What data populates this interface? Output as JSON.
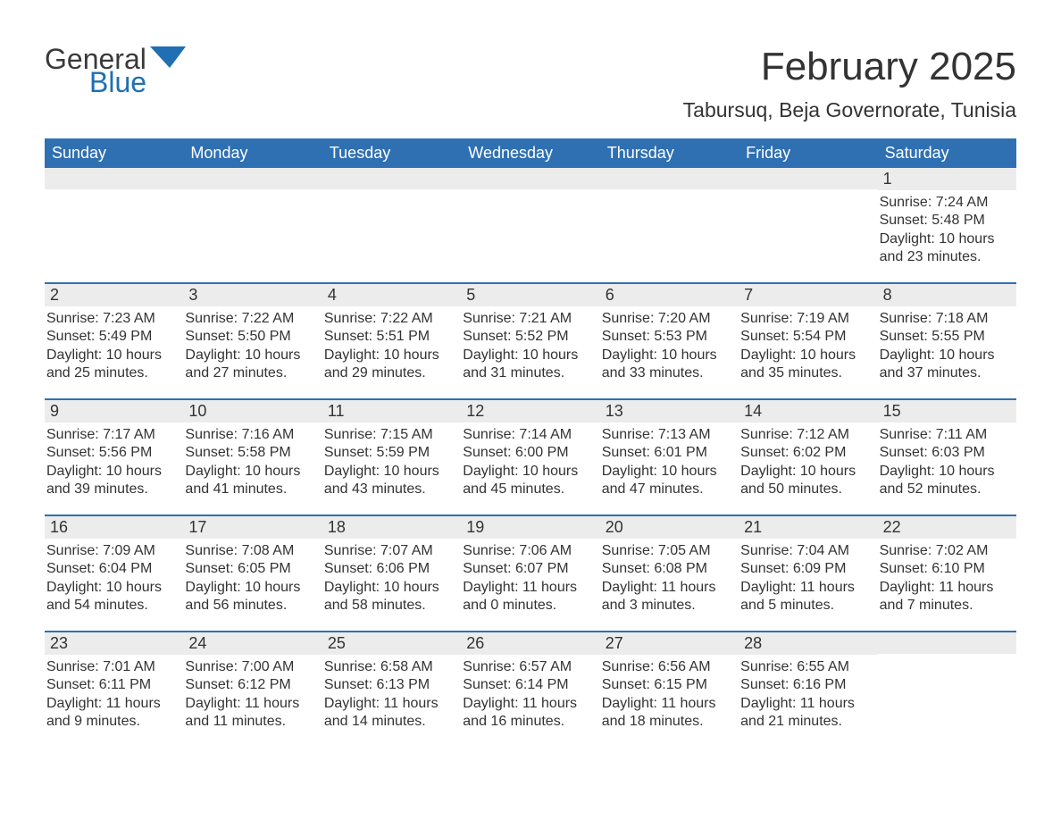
{
  "logo": {
    "general": "General",
    "blue": "Blue",
    "mark_color": "#1f6fb2"
  },
  "title": "February 2025",
  "location": "Tabursuq, Beja Governorate, Tunisia",
  "header_bg": "#2f70b3",
  "header_fg": "#ffffff",
  "daynum_bg": "#ececec",
  "week_border": "#2f70b3",
  "text_color": "#333333",
  "background_color": "#ffffff",
  "day_headers": [
    "Sunday",
    "Monday",
    "Tuesday",
    "Wednesday",
    "Thursday",
    "Friday",
    "Saturday"
  ],
  "weeks": [
    [
      null,
      null,
      null,
      null,
      null,
      null,
      {
        "n": "1",
        "sunrise": "Sunrise: 7:24 AM",
        "sunset": "Sunset: 5:48 PM",
        "day1": "Daylight: 10 hours",
        "day2": "and 23 minutes."
      }
    ],
    [
      {
        "n": "2",
        "sunrise": "Sunrise: 7:23 AM",
        "sunset": "Sunset: 5:49 PM",
        "day1": "Daylight: 10 hours",
        "day2": "and 25 minutes."
      },
      {
        "n": "3",
        "sunrise": "Sunrise: 7:22 AM",
        "sunset": "Sunset: 5:50 PM",
        "day1": "Daylight: 10 hours",
        "day2": "and 27 minutes."
      },
      {
        "n": "4",
        "sunrise": "Sunrise: 7:22 AM",
        "sunset": "Sunset: 5:51 PM",
        "day1": "Daylight: 10 hours",
        "day2": "and 29 minutes."
      },
      {
        "n": "5",
        "sunrise": "Sunrise: 7:21 AM",
        "sunset": "Sunset: 5:52 PM",
        "day1": "Daylight: 10 hours",
        "day2": "and 31 minutes."
      },
      {
        "n": "6",
        "sunrise": "Sunrise: 7:20 AM",
        "sunset": "Sunset: 5:53 PM",
        "day1": "Daylight: 10 hours",
        "day2": "and 33 minutes."
      },
      {
        "n": "7",
        "sunrise": "Sunrise: 7:19 AM",
        "sunset": "Sunset: 5:54 PM",
        "day1": "Daylight: 10 hours",
        "day2": "and 35 minutes."
      },
      {
        "n": "8",
        "sunrise": "Sunrise: 7:18 AM",
        "sunset": "Sunset: 5:55 PM",
        "day1": "Daylight: 10 hours",
        "day2": "and 37 minutes."
      }
    ],
    [
      {
        "n": "9",
        "sunrise": "Sunrise: 7:17 AM",
        "sunset": "Sunset: 5:56 PM",
        "day1": "Daylight: 10 hours",
        "day2": "and 39 minutes."
      },
      {
        "n": "10",
        "sunrise": "Sunrise: 7:16 AM",
        "sunset": "Sunset: 5:58 PM",
        "day1": "Daylight: 10 hours",
        "day2": "and 41 minutes."
      },
      {
        "n": "11",
        "sunrise": "Sunrise: 7:15 AM",
        "sunset": "Sunset: 5:59 PM",
        "day1": "Daylight: 10 hours",
        "day2": "and 43 minutes."
      },
      {
        "n": "12",
        "sunrise": "Sunrise: 7:14 AM",
        "sunset": "Sunset: 6:00 PM",
        "day1": "Daylight: 10 hours",
        "day2": "and 45 minutes."
      },
      {
        "n": "13",
        "sunrise": "Sunrise: 7:13 AM",
        "sunset": "Sunset: 6:01 PM",
        "day1": "Daylight: 10 hours",
        "day2": "and 47 minutes."
      },
      {
        "n": "14",
        "sunrise": "Sunrise: 7:12 AM",
        "sunset": "Sunset: 6:02 PM",
        "day1": "Daylight: 10 hours",
        "day2": "and 50 minutes."
      },
      {
        "n": "15",
        "sunrise": "Sunrise: 7:11 AM",
        "sunset": "Sunset: 6:03 PM",
        "day1": "Daylight: 10 hours",
        "day2": "and 52 minutes."
      }
    ],
    [
      {
        "n": "16",
        "sunrise": "Sunrise: 7:09 AM",
        "sunset": "Sunset: 6:04 PM",
        "day1": "Daylight: 10 hours",
        "day2": "and 54 minutes."
      },
      {
        "n": "17",
        "sunrise": "Sunrise: 7:08 AM",
        "sunset": "Sunset: 6:05 PM",
        "day1": "Daylight: 10 hours",
        "day2": "and 56 minutes."
      },
      {
        "n": "18",
        "sunrise": "Sunrise: 7:07 AM",
        "sunset": "Sunset: 6:06 PM",
        "day1": "Daylight: 10 hours",
        "day2": "and 58 minutes."
      },
      {
        "n": "19",
        "sunrise": "Sunrise: 7:06 AM",
        "sunset": "Sunset: 6:07 PM",
        "day1": "Daylight: 11 hours",
        "day2": "and 0 minutes."
      },
      {
        "n": "20",
        "sunrise": "Sunrise: 7:05 AM",
        "sunset": "Sunset: 6:08 PM",
        "day1": "Daylight: 11 hours",
        "day2": "and 3 minutes."
      },
      {
        "n": "21",
        "sunrise": "Sunrise: 7:04 AM",
        "sunset": "Sunset: 6:09 PM",
        "day1": "Daylight: 11 hours",
        "day2": "and 5 minutes."
      },
      {
        "n": "22",
        "sunrise": "Sunrise: 7:02 AM",
        "sunset": "Sunset: 6:10 PM",
        "day1": "Daylight: 11 hours",
        "day2": "and 7 minutes."
      }
    ],
    [
      {
        "n": "23",
        "sunrise": "Sunrise: 7:01 AM",
        "sunset": "Sunset: 6:11 PM",
        "day1": "Daylight: 11 hours",
        "day2": "and 9 minutes."
      },
      {
        "n": "24",
        "sunrise": "Sunrise: 7:00 AM",
        "sunset": "Sunset: 6:12 PM",
        "day1": "Daylight: 11 hours",
        "day2": "and 11 minutes."
      },
      {
        "n": "25",
        "sunrise": "Sunrise: 6:58 AM",
        "sunset": "Sunset: 6:13 PM",
        "day1": "Daylight: 11 hours",
        "day2": "and 14 minutes."
      },
      {
        "n": "26",
        "sunrise": "Sunrise: 6:57 AM",
        "sunset": "Sunset: 6:14 PM",
        "day1": "Daylight: 11 hours",
        "day2": "and 16 minutes."
      },
      {
        "n": "27",
        "sunrise": "Sunrise: 6:56 AM",
        "sunset": "Sunset: 6:15 PM",
        "day1": "Daylight: 11 hours",
        "day2": "and 18 minutes."
      },
      {
        "n": "28",
        "sunrise": "Sunrise: 6:55 AM",
        "sunset": "Sunset: 6:16 PM",
        "day1": "Daylight: 11 hours",
        "day2": "and 21 minutes."
      },
      null
    ]
  ]
}
